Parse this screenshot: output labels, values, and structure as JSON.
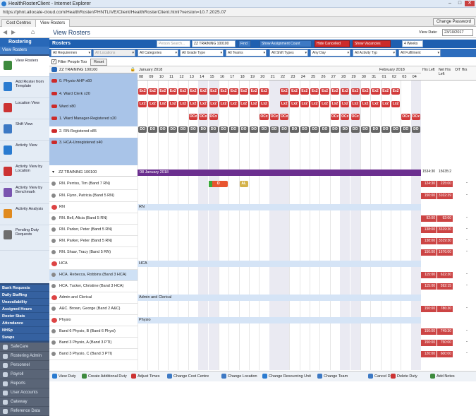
{
  "window": {
    "title": "HealthRosterClient - Internet Explorer",
    "url": "https://phnt.allocate-cloud.com/HealthRoster/PHNTLIVE/Client/HealthRosterClient.html?version=10.7.2025.07"
  },
  "tabs": [
    "Cost Centres",
    "View Rosters"
  ],
  "change_password": "Change Password",
  "page_title": "View Rosters",
  "view_date_label": "View Date:",
  "view_date": "23/10/2017",
  "sidebar": {
    "header": "Rostering",
    "sub": "View Rosters",
    "items": [
      "View Rosters",
      "Add Roster from Template",
      "Location View",
      "Shift View",
      "Activity View",
      "Activity View by Location",
      "Activity View by Benchmark",
      "Activity Analysis",
      "Pending Duty Requests"
    ],
    "links": [
      "Bank Requests",
      "Daily Staffing",
      "Unavailability",
      "Assigned Hours",
      "Roster Stats",
      "Attendance",
      "NHSp",
      "Swaps"
    ],
    "apps": [
      "SafeCare",
      "Rostering Admin",
      "Personnel",
      "Payroll",
      "Reports",
      "User Accounts",
      "Gateway",
      "Reference Data"
    ]
  },
  "rosterbar": {
    "label": "Rosters",
    "search_placeholder": "Person Search...",
    "unit": "ZZ TRAINING 100100",
    "find": "Find",
    "show_assign": "Show Assignment Count",
    "hide_cancelled": "Hide Cancelled",
    "show_vacancies": "Show Vacancies",
    "period": "4 Weeks"
  },
  "filters": [
    "All Requiremen",
    "All Locations",
    "All Categories",
    "All Grade Type",
    "All Teams",
    "All Shift Types",
    "Any Day",
    "All Activity Typ",
    "All Fulfilment"
  ],
  "filter_people": "Filter People Too",
  "reset": "Reset",
  "unit_header": "ZZ TRAINING 100100",
  "months": {
    "jan": "January 2018",
    "feb": "February 2018"
  },
  "days": [
    "08",
    "09",
    "10",
    "11",
    "12",
    "13",
    "14",
    "15",
    "16",
    "17",
    "18",
    "19",
    "20",
    "21",
    "22",
    "23",
    "24",
    "25",
    "26",
    "27",
    "28",
    "29",
    "30",
    "31",
    "01",
    "02",
    "03",
    "04"
  ],
  "right_headers": [
    "Hrs Left",
    "Net Hrs Left",
    "O/T Hrs"
  ],
  "requirements": [
    "0. Physio-AHP x60",
    "4. Ward Clerk x20",
    "Ward  x80",
    "1. Ward Manager-Registered x20",
    "2. RN-Registered x85",
    "3. HCA-Unregistered x40"
  ],
  "codes": {
    "ex2": "Ex2",
    "ex1": "Ex1",
    "lx2": "Lx2",
    "lx1": "Lx1",
    "ocx": "OCx",
    "d0": "DO"
  },
  "people_header": "ZZ TRAINING 100100",
  "people_hrs": "1534:30",
  "people_net": "15635:2",
  "banner_date": "08 January 2018",
  "people": [
    {
      "n": "RN. Perriss, Tim (Band 7 RN)",
      "h": "124:30",
      "nh": "225:00"
    },
    {
      "n": "RN. Flynn, Patricia (Band 5 RN)",
      "h": "150:00",
      "nh": "3102:39"
    },
    {
      "n": "RN",
      "g": "RN"
    },
    {
      "n": "RN. Bell, Alicia (Band 5 RN)",
      "h": "92:00",
      "nh": "92:00"
    },
    {
      "n": "RN. Parker, Peter (Band 5 RN)",
      "h": "138:00",
      "nh": "3319:30"
    },
    {
      "n": "RN. Parker, Peter (Band 5 RN)",
      "h": "138:00",
      "nh": "3319:30"
    },
    {
      "n": "RN. Shaw, Tracy (Band 5 RN)",
      "h": "150:00",
      "nh": "1676:00"
    },
    {
      "n": "HCA",
      "g": "HCA"
    },
    {
      "n": "HCA. Rebecca, Robbins (Band 3 HCA)",
      "h": "115:00",
      "nh": "622:30"
    },
    {
      "n": "HCA. Tucker, Christine (Band 3 HCA)",
      "h": "115:00",
      "nh": "592:15"
    },
    {
      "n": "Admin and Clerical",
      "g": "Admin and Clerical"
    },
    {
      "n": "A&C. Brown, George (Band 2 A&C)",
      "h": "150:00",
      "nh": "786:30"
    },
    {
      "n": "Physio",
      "g": "Physio"
    },
    {
      "n": "Band 6 Physio, B (Band 6 Physi)",
      "h": "150:00",
      "nh": "749:30"
    },
    {
      "n": "Band 3 Physio, A (Band 3 PTI)",
      "h": "150:00",
      "nh": "750:00"
    },
    {
      "n": "Band 3 Physio, C (Band 3 PTI)",
      "h": "120:00",
      "nh": "600:00"
    }
  ],
  "duty_labels": [
    "D",
    "AL"
  ],
  "toolbar": [
    "View Duty",
    "Create Additional Duty",
    "Adjust Times",
    "Change Cost Centre",
    "Change Location",
    "Change Resourcing Unit",
    "Change Team",
    "Cancel Duty",
    "Delete Duty",
    "Add Notes"
  ],
  "colors": {
    "accent": "#1e5fb0",
    "chip_red": "#d23a3a",
    "chip_grey": "#666",
    "banner": "#6b2f8f"
  }
}
